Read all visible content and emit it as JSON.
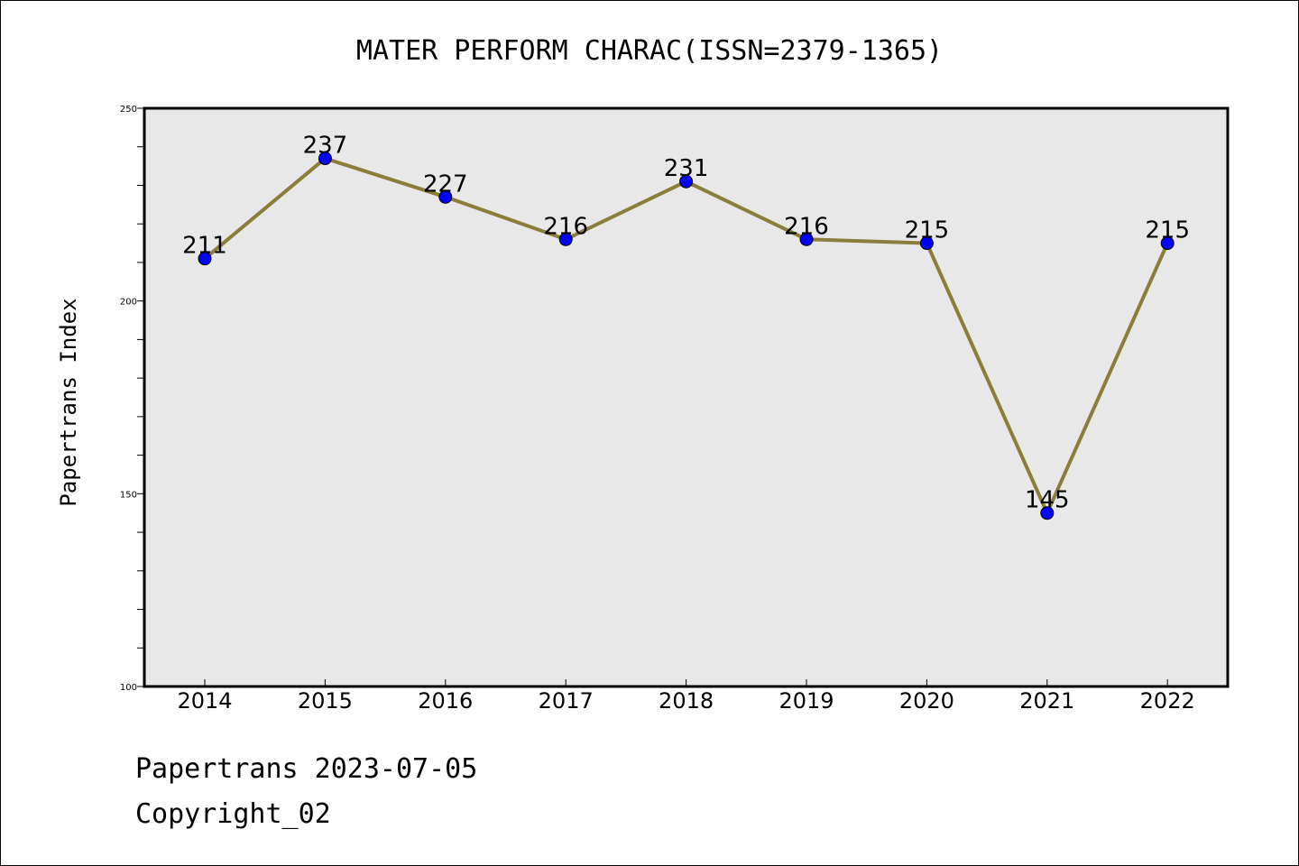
{
  "chart_data": {
    "type": "line",
    "title": "MATER PERFORM CHARAC(ISSN=2379-1365)",
    "ylabel": "Papertrans Index",
    "xlabel": "",
    "categories": [
      "2014",
      "2015",
      "2016",
      "2017",
      "2018",
      "2019",
      "2020",
      "2021",
      "2022"
    ],
    "values": [
      211,
      237,
      227,
      216,
      231,
      216,
      215,
      145,
      215
    ],
    "data_labels": [
      "211",
      "237",
      "227",
      "216",
      "231",
      "216",
      "215",
      "145",
      "215"
    ],
    "ylim": [
      100,
      250
    ],
    "yticks": [
      100,
      150,
      200,
      250
    ],
    "ytick_labels": [
      "100",
      "150",
      "200",
      "250"
    ],
    "grid": false,
    "line_color": "#8b7d3a",
    "marker_color": "#0000ff",
    "plot_background": "#e8e8e8"
  },
  "footer": {
    "date_line": "Papertrans 2023-07-05",
    "copyright": "Copyright_02"
  }
}
